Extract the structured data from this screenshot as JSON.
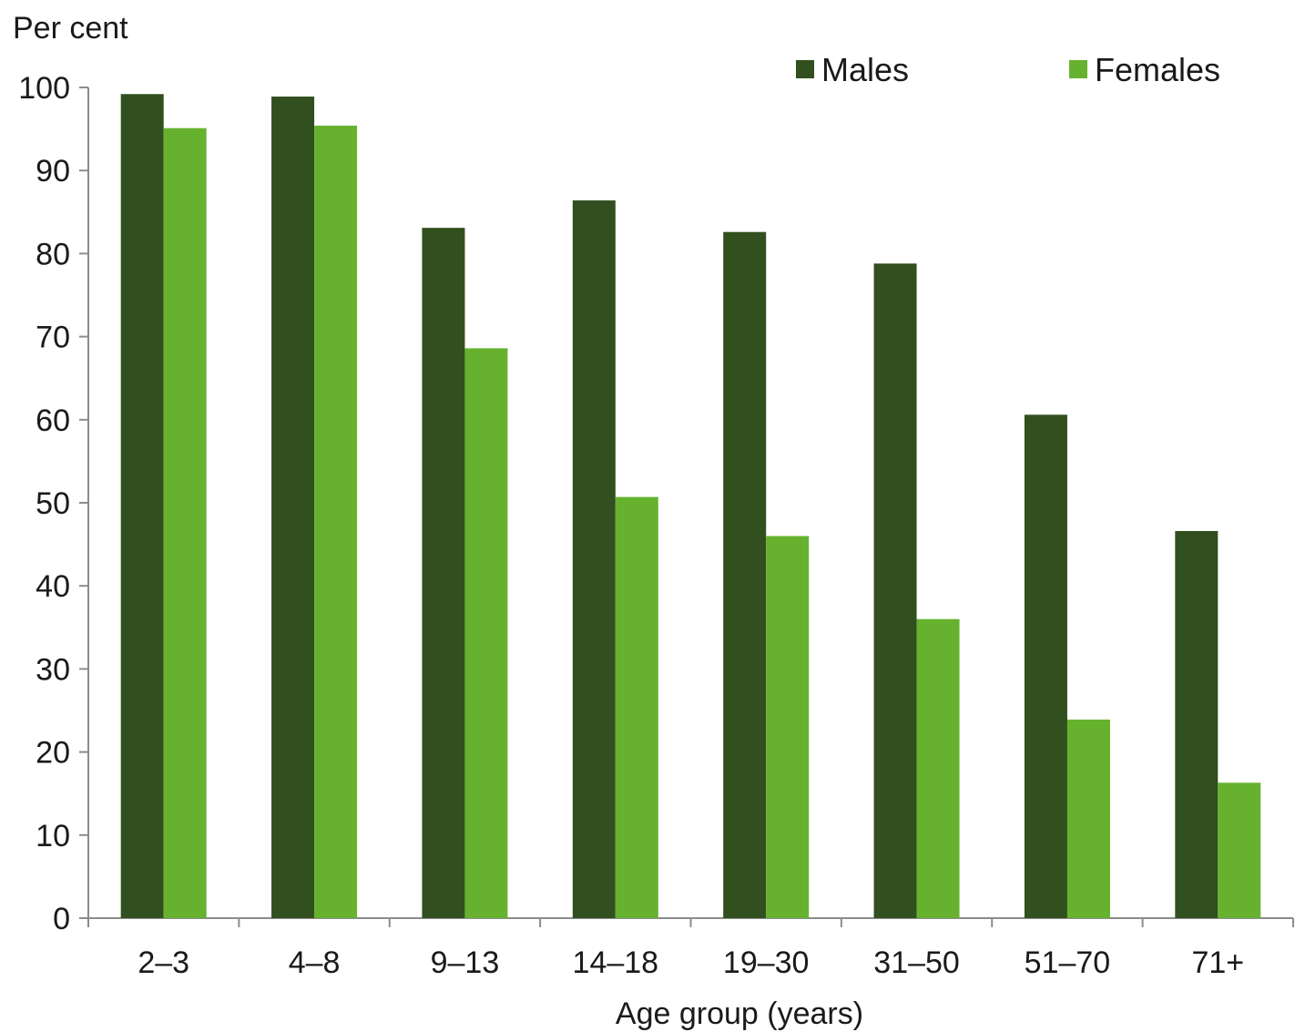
{
  "chart_data": {
    "type": "bar",
    "ylabel": "Per cent",
    "xlabel": "Age group (years)",
    "categories": [
      "2–3",
      "4–8",
      "9–13",
      "14–18",
      "19–30",
      "31–50",
      "51–70",
      "71+"
    ],
    "series": [
      {
        "name": "Males",
        "color": "#314f1f",
        "values": [
          99.2,
          98.9,
          83.1,
          86.4,
          82.6,
          78.8,
          60.6,
          46.6
        ]
      },
      {
        "name": "Females",
        "color": "#66b22f",
        "values": [
          95.1,
          95.4,
          68.6,
          50.7,
          46.0,
          36.0,
          23.9,
          16.3
        ]
      }
    ],
    "ylim": [
      0,
      100
    ],
    "yticks": [
      0,
      10,
      20,
      30,
      40,
      50,
      60,
      70,
      80,
      90,
      100
    ],
    "grid": false,
    "legend": "top-right"
  }
}
